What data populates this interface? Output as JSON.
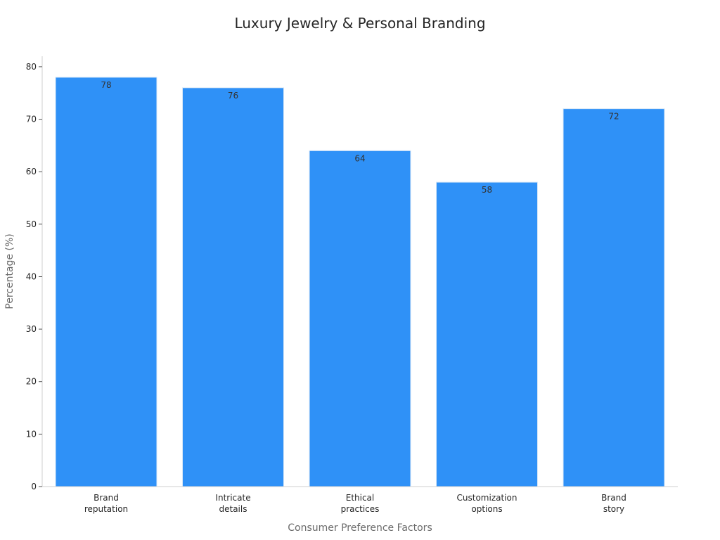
{
  "chart_data": {
    "type": "bar",
    "title": "Luxury Jewelry & Personal Branding",
    "xlabel": "Consumer Preference Factors",
    "ylabel": "Percentage (%)",
    "categories": [
      [
        "Brand",
        "reputation"
      ],
      [
        "Intricate",
        "details"
      ],
      [
        "Ethical",
        "practices"
      ],
      [
        "Customization",
        "options"
      ],
      [
        "Brand",
        "story"
      ]
    ],
    "values": [
      78,
      76,
      64,
      58,
      72
    ],
    "ylim": [
      0,
      82
    ],
    "yticks": [
      0,
      10,
      20,
      30,
      40,
      50,
      60,
      70,
      80
    ],
    "grid": false,
    "bar_color": "#2f91f7",
    "data_labels": true
  }
}
